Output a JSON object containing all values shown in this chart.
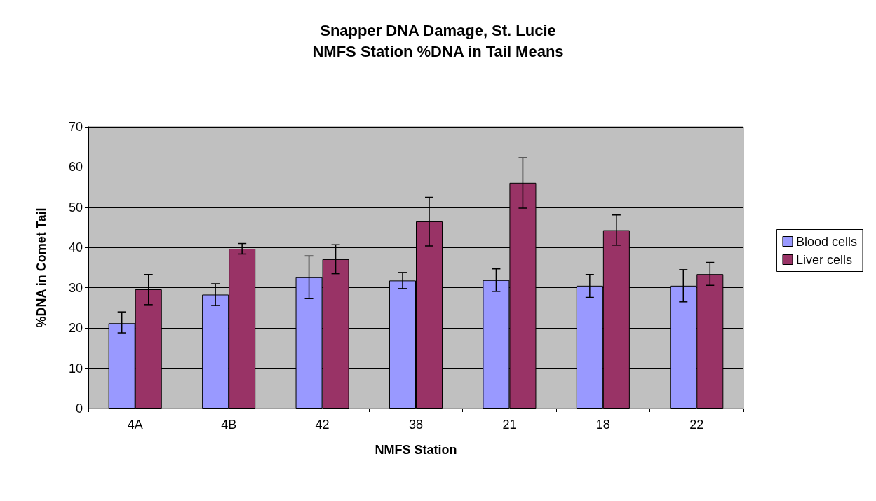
{
  "chart_data": {
    "type": "bar",
    "title": "Snapper DNA Damage, St. Lucie",
    "subtitle": "NMFS Station %DNA in Tail Means",
    "xlabel": "NMFS Station",
    "ylabel": "%DNA in Comet Tail",
    "categories": [
      "4A",
      "4B",
      "42",
      "38",
      "21",
      "18",
      "22"
    ],
    "series": [
      {
        "name": "Blood cells",
        "color": "#9999ff",
        "values": [
          21.2,
          28.3,
          32.6,
          31.8,
          31.9,
          30.5,
          30.5
        ],
        "errors": [
          [
            18.8,
            24.0
          ],
          [
            25.6,
            31.0
          ],
          [
            27.3,
            37.9
          ],
          [
            29.8,
            33.8
          ],
          [
            29.1,
            34.7
          ],
          [
            27.6,
            33.3
          ],
          [
            26.5,
            34.5
          ]
        ]
      },
      {
        "name": "Liver cells",
        "color": "#993366",
        "values": [
          29.6,
          39.7,
          37.1,
          46.5,
          56.1,
          44.3,
          33.4
        ],
        "errors": [
          [
            25.8,
            33.3
          ],
          [
            38.4,
            41.0
          ],
          [
            33.5,
            40.7
          ],
          [
            40.4,
            52.5
          ],
          [
            49.8,
            62.3
          ],
          [
            40.6,
            48.1
          ],
          [
            30.6,
            36.3
          ]
        ]
      }
    ],
    "ylim": [
      0,
      70
    ],
    "yticks": [
      0,
      10,
      20,
      30,
      40,
      50,
      60,
      70
    ],
    "grid": "y",
    "legend": "right"
  }
}
